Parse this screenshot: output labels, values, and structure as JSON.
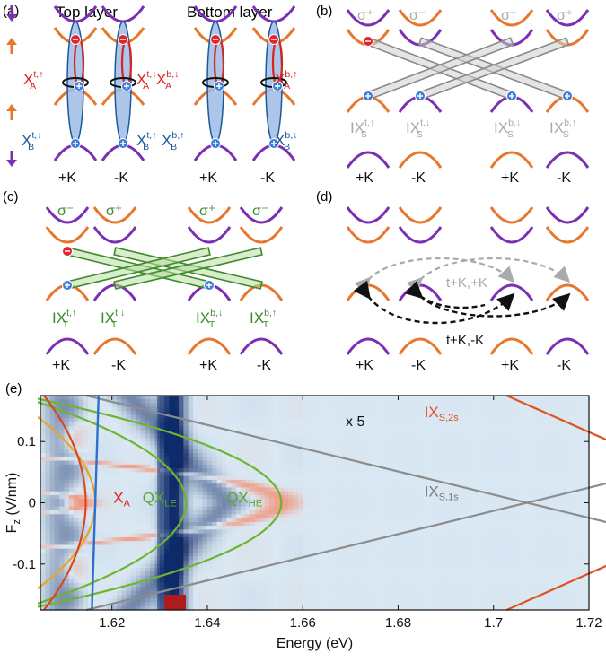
{
  "colors": {
    "purple": "#7b2fb5",
    "orange": "#e8772e",
    "red": "#d9231f",
    "blue": "#1d5a9b",
    "green": "#3c8c2a",
    "gray": "#a8a8a8",
    "darkgray": "#7a7a7a",
    "black": "#111111"
  },
  "panels": {
    "a": {
      "label": "(a)",
      "title_top": "Top layer",
      "title_bottom": "Bottom layer",
      "excitons_A": [
        {
          "base": "X",
          "sub": "A",
          "sup": "t,↑"
        },
        {
          "base": "X",
          "sub": "A",
          "sup": "t,↓"
        },
        {
          "base": "X",
          "sub": "A",
          "sup": "b,↓"
        },
        {
          "base": "X",
          "sub": "A",
          "sup": "b,↑"
        }
      ],
      "excitons_B": [
        {
          "base": "X",
          "sub": "B",
          "sup": "t,↓"
        },
        {
          "base": "X",
          "sub": "B",
          "sup": "t,↑"
        },
        {
          "base": "X",
          "sub": "B",
          "sup": "b,↑"
        },
        {
          "base": "X",
          "sub": "B",
          "sup": "b,↓"
        }
      ],
      "valleys": [
        "+K",
        "-K",
        "+K",
        "-K"
      ]
    },
    "b": {
      "label": "(b)",
      "pol": [
        "σ⁺",
        "σ⁻",
        "σ⁻",
        "σ⁺"
      ],
      "excitons": [
        {
          "base": "IX",
          "sub": "S",
          "sup": "t,↑"
        },
        {
          "base": "IX",
          "sub": "S",
          "sup": "t,↓"
        },
        {
          "base": "IX",
          "sub": "S",
          "sup": "b,↓"
        },
        {
          "base": "IX",
          "sub": "S",
          "sup": "b,↑"
        }
      ],
      "valleys": [
        "+K",
        "-K",
        "+K",
        "-K"
      ]
    },
    "c": {
      "label": "(c)",
      "pol": [
        "σ⁻",
        "σ⁺",
        "σ⁺",
        "σ⁻"
      ],
      "excitons": [
        {
          "base": "IX",
          "sub": "T",
          "sup": "t,↑"
        },
        {
          "base": "IX",
          "sub": "T",
          "sup": "t,↓"
        },
        {
          "base": "IX",
          "sub": "T",
          "sup": "b,↓"
        },
        {
          "base": "IX",
          "sub": "T",
          "sup": "b,↑"
        }
      ],
      "valleys": [
        "+K",
        "-K",
        "+K",
        "-K"
      ]
    },
    "d": {
      "label": "(d)",
      "hop_same": "t+K,+K",
      "hop_diff": "t+K,-K",
      "valleys": [
        "+K",
        "-K",
        "+K",
        "-K"
      ]
    }
  },
  "chart_data": {
    "label": "(e)",
    "type": "heatmap",
    "xlabel": "Energy (eV)",
    "ylabel": "F_z (V/nm)",
    "xlim": [
      1.605,
      1.72
    ],
    "ylim": [
      -0.175,
      0.175
    ],
    "xticks": [
      "1.62",
      "1.64",
      "1.66",
      "1.68",
      "1.7",
      "1.72"
    ],
    "yticks": [
      "0.1",
      "0",
      "-0.1"
    ],
    "multiplier_note": "x 5",
    "annotations": [
      {
        "base": "X",
        "sub": "A",
        "color": "#d9231f"
      },
      {
        "base": "QX",
        "sub": "LE",
        "color": "#5aa82e"
      },
      {
        "base": "QX",
        "sub": "HE",
        "color": "#5aa82e"
      },
      {
        "base": "IX",
        "sub": "S,1s",
        "color": "#7a7a7a"
      },
      {
        "base": "IX",
        "sub": "S,2s",
        "color": "#e0531e"
      }
    ],
    "curves": {
      "IX_S_1s": {
        "color": "#8c8c8c",
        "center_eV": 1.707,
        "slope_eV_per_Vnm": 0.58
      },
      "IX_S_2s": {
        "color": "#e0531e",
        "center_eV": 1.7535,
        "slope_eV_per_Vnm": 0.58
      },
      "QX_HE": {
        "color": "#6bb52f",
        "peak_eV": 1.6555,
        "base_eV": 1.6245,
        "width": 0.09
      },
      "QX_LE": {
        "color": "#6bb52f",
        "peak_eV": 1.6355,
        "base_eV": 1.6165,
        "width": 0.085
      },
      "XA_orange": {
        "color": "#e8a42a",
        "peak_eV": 1.6165,
        "base_eV": 1.6045,
        "width": 0.1
      },
      "XA_red": {
        "color": "#d9481f",
        "peak_eV": 1.6145,
        "base_eV": 1.6095,
        "width": 0.09
      },
      "X_blue": {
        "color": "#2d6fd0",
        "center_eV": 1.6165,
        "slope_eV_per_Vnm": 0.004
      }
    }
  }
}
